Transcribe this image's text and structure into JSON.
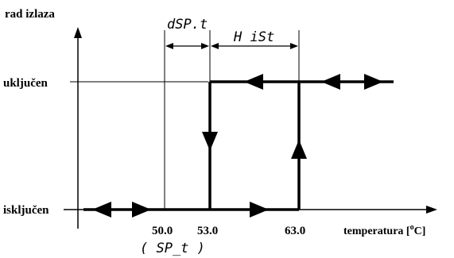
{
  "y_axis_label": "rad izlaza",
  "x_axis_label": "temperatura [",
  "x_axis_unit_sup": "o",
  "x_axis_unit_tail": "C]",
  "state_on": "uključen",
  "state_off": "isključen",
  "tick_50": "50.0",
  "tick_53": "53.0",
  "tick_63": "63.0",
  "sp_t_label": "( SP_t )",
  "dspt_label": "dSP.t",
  "hist_label": "H iSt"
}
